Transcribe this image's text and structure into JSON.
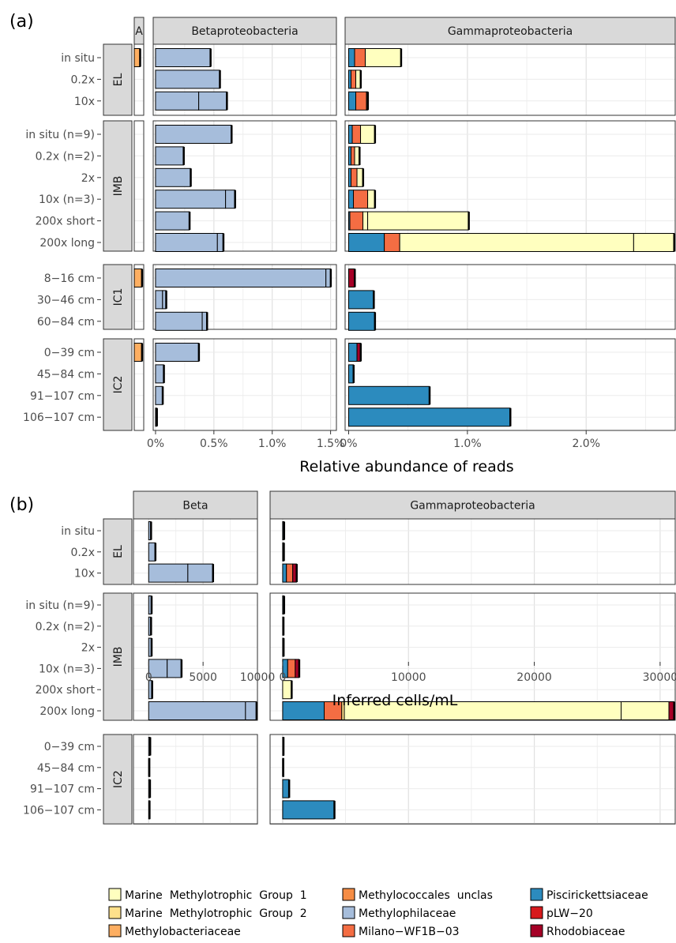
{
  "panels": [
    {
      "tag": "(a)",
      "xlabel": "Relative abundance of reads",
      "facets": [
        {
          "label": "A",
          "ticks": []
        },
        {
          "label": "Betaproteobacteria",
          "ticks": [
            "0%",
            "0.5%",
            "1.0%",
            "1.5%"
          ]
        },
        {
          "label": "Gammaproteobacteria",
          "ticks": [
            "0%",
            "1.0%",
            "2.0%"
          ]
        }
      ],
      "rowgroups": [
        {
          "label": "EL",
          "rows": [
            "in situ",
            "0.2x",
            "10x"
          ]
        },
        {
          "label": "IMB",
          "rows": [
            "in situ (n=9)",
            "0.2x (n=2)",
            "2x",
            "10x (n=3)",
            "200x short",
            "200x long"
          ]
        },
        {
          "label": "IC1",
          "rows": [
            "8−16 cm",
            "30−46 cm",
            "60−84 cm"
          ]
        },
        {
          "label": "IC2",
          "rows": [
            "0−39 cm",
            "45−84 cm",
            "91−107 cm",
            "106−107 cm"
          ]
        }
      ]
    },
    {
      "tag": "(b)",
      "xlabel": "Inferred cells/mL",
      "facets": [
        {
          "label": "Beta",
          "ticks": [
            "0",
            "5000",
            "10000"
          ]
        },
        {
          "label": "Gammaproteobacteria",
          "ticks": [
            "0",
            "10000",
            "20000",
            "30000"
          ]
        }
      ],
      "rowgroups": [
        {
          "label": "EL",
          "rows": [
            "in situ",
            "0.2x",
            "10x"
          ]
        },
        {
          "label": "IMB",
          "rows": [
            "in situ (n=9)",
            "0.2x (n=2)",
            "2x",
            "10x (n=3)",
            "200x short",
            "200x long"
          ]
        },
        {
          "label": "IC2",
          "rows": [
            "0−39 cm",
            "45−84 cm",
            "91−107 cm",
            "106−107 cm"
          ]
        }
      ]
    }
  ],
  "legend": [
    {
      "name": "Marine  Methylotrophic  Group  1",
      "color": "#ffffbf"
    },
    {
      "name": "Marine  Methylotrophic  Group  2",
      "color": "#fee08b"
    },
    {
      "name": "Methylobacteriaceae",
      "color": "#fdae61"
    },
    {
      "name": "Methylococcales  unclas",
      "color": "#f68d45"
    },
    {
      "name": "Methylophilaceae",
      "color": "#a6bddb"
    },
    {
      "name": "Milano−WF1B−03",
      "color": "#f46d43"
    },
    {
      "name": "Piscirickettsiaceae",
      "color": "#2c8bbe"
    },
    {
      "name": "pLW−20",
      "color": "#d7191c"
    },
    {
      "name": "Rhodobiaceae",
      "color": "#a50026"
    }
  ],
  "chart_data": [
    {
      "type": "bar",
      "orientation": "horizontal",
      "stacked": true,
      "title": "(a)",
      "xlabel": "Relative abundance of reads",
      "xlim_percent": {
        "A": [
          0,
          0.05
        ],
        "Betaproteobacteria": [
          0,
          1.55
        ],
        "Gammaproteobacteria": [
          0,
          2.75
        ]
      },
      "grid": true,
      "legend_position": "bottom",
      "rows": [
        {
          "group": "EL",
          "label": "in situ",
          "A": [
            {
              "taxon": "Methylobacteriaceae",
              "value": 0.03
            }
          ],
          "Betaproteobacteria": [
            {
              "taxon": "Methylophilaceae",
              "value": 0.47
            }
          ],
          "Gammaproteobacteria": [
            {
              "taxon": "Piscirickettsiaceae",
              "value": 0.05
            },
            {
              "taxon": "Milano−WF1B−03",
              "value": 0.09
            },
            {
              "taxon": "Marine Methylotrophic Group 1",
              "value": 0.3
            }
          ]
        },
        {
          "group": "EL",
          "label": "0.2x",
          "A": [],
          "Betaproteobacteria": [
            {
              "taxon": "Methylophilaceae",
              "value": 0.55
            }
          ],
          "Gammaproteobacteria": [
            {
              "taxon": "Piscirickettsiaceae",
              "value": 0.02
            },
            {
              "taxon": "Milano−WF1B−03",
              "value": 0.04
            },
            {
              "taxon": "Marine Methylotrophic Group 1",
              "value": 0.04
            }
          ]
        },
        {
          "group": "EL",
          "label": "10x",
          "A": [],
          "Betaproteobacteria": [
            {
              "taxon": "Methylophilaceae",
              "value": 0.37
            },
            {
              "taxon": "Methylophilaceae",
              "value": 0.24
            }
          ],
          "Gammaproteobacteria": [
            {
              "taxon": "Piscirickettsiaceae",
              "value": 0.06
            },
            {
              "taxon": "Milano−WF1B−03",
              "value": 0.09
            },
            {
              "taxon": "Marine Methylotrophic Group 1",
              "value": 0.01
            }
          ]
        },
        {
          "group": "IMB",
          "label": "in situ (n=9)",
          "A": [],
          "Betaproteobacteria": [
            {
              "taxon": "Methylophilaceae",
              "value": 0.65
            }
          ],
          "Gammaproteobacteria": [
            {
              "taxon": "Piscirickettsiaceae",
              "value": 0.03
            },
            {
              "taxon": "Milano−WF1B−03",
              "value": 0.07
            },
            {
              "taxon": "Marine Methylotrophic Group 1",
              "value": 0.12
            }
          ]
        },
        {
          "group": "IMB",
          "label": "0.2x (n=2)",
          "A": [],
          "Betaproteobacteria": [
            {
              "taxon": "Methylophilaceae",
              "value": 0.24
            }
          ],
          "Gammaproteobacteria": [
            {
              "taxon": "Piscirickettsiaceae",
              "value": 0.02
            },
            {
              "taxon": "Milano−WF1B−03",
              "value": 0.03
            },
            {
              "taxon": "Marine Methylotrophic Group 1",
              "value": 0.04
            }
          ]
        },
        {
          "group": "IMB",
          "label": "2x",
          "A": [],
          "Betaproteobacteria": [
            {
              "taxon": "Methylophilaceae",
              "value": 0.3
            }
          ],
          "Gammaproteobacteria": [
            {
              "taxon": "Piscirickettsiaceae",
              "value": 0.02
            },
            {
              "taxon": "Milano−WF1B−03",
              "value": 0.05
            },
            {
              "taxon": "Marine Methylotrophic Group 1",
              "value": 0.05
            }
          ]
        },
        {
          "group": "IMB",
          "label": "10x (n=3)",
          "A": [],
          "Betaproteobacteria": [
            {
              "taxon": "Methylophilaceae",
              "value": 0.6
            },
            {
              "taxon": "Methylophilaceae",
              "value": 0.08
            }
          ],
          "Gammaproteobacteria": [
            {
              "taxon": "Piscirickettsiaceae",
              "value": 0.04
            },
            {
              "taxon": "Milano−WF1B−03",
              "value": 0.12
            },
            {
              "taxon": "Marine Methylotrophic Group 1",
              "value": 0.06
            }
          ]
        },
        {
          "group": "IMB",
          "label": "200x short",
          "A": [],
          "Betaproteobacteria": [
            {
              "taxon": "Methylophilaceae",
              "value": 0.29
            }
          ],
          "Gammaproteobacteria": [
            {
              "taxon": "Piscirickettsiaceae",
              "value": 0.01
            },
            {
              "taxon": "Milano−WF1B−03",
              "value": 0.11
            },
            {
              "taxon": "Marine Methylotrophic Group 1",
              "value": 0.04
            },
            {
              "taxon": "Marine Methylotrophic Group 1",
              "value": 0.85
            }
          ]
        },
        {
          "group": "IMB",
          "label": "200x long",
          "A": [],
          "Betaproteobacteria": [
            {
              "taxon": "Methylophilaceae",
              "value": 0.53
            },
            {
              "taxon": "Methylophilaceae",
              "value": 0.05
            }
          ],
          "Gammaproteobacteria": [
            {
              "taxon": "Piscirickettsiaceae",
              "value": 0.3
            },
            {
              "taxon": "Milano−WF1B−03",
              "value": 0.13
            },
            {
              "taxon": "Marine Methylotrophic Group 1",
              "value": 1.97
            },
            {
              "taxon": "Marine Methylotrophic Group 1",
              "value": 0.34
            }
          ]
        },
        {
          "group": "IC1",
          "label": "8−16 cm",
          "A": [
            {
              "taxon": "Methylobacteriaceae",
              "value": 0.04
            }
          ],
          "Betaproteobacteria": [
            {
              "taxon": "Methylophilaceae",
              "value": 1.46
            },
            {
              "taxon": "Methylophilaceae",
              "value": 0.04
            }
          ],
          "Gammaproteobacteria": [
            {
              "taxon": "Rhodobiaceae",
              "value": 0.05
            }
          ]
        },
        {
          "group": "IC1",
          "label": "30−46 cm",
          "A": [],
          "Betaproteobacteria": [
            {
              "taxon": "Methylophilaceae",
              "value": 0.06
            },
            {
              "taxon": "Methylophilaceae",
              "value": 0.03
            }
          ],
          "Gammaproteobacteria": [
            {
              "taxon": "Piscirickettsiaceae",
              "value": 0.21
            }
          ]
        },
        {
          "group": "IC1",
          "label": "60−84 cm",
          "A": [],
          "Betaproteobacteria": [
            {
              "taxon": "Methylophilaceae",
              "value": 0.4
            },
            {
              "taxon": "Methylophilaceae",
              "value": 0.04
            }
          ],
          "Gammaproteobacteria": [
            {
              "taxon": "Piscirickettsiaceae",
              "value": 0.22
            }
          ]
        },
        {
          "group": "IC2",
          "label": "0−39 cm",
          "A": [
            {
              "taxon": "Methylobacteriaceae",
              "value": 0.04
            }
          ],
          "Betaproteobacteria": [
            {
              "taxon": "Methylophilaceae",
              "value": 0.37
            }
          ],
          "Gammaproteobacteria": [
            {
              "taxon": "Piscirickettsiaceae",
              "value": 0.07
            },
            {
              "taxon": "Rhodobiaceae",
              "value": 0.03
            }
          ]
        },
        {
          "group": "IC2",
          "label": "45−84 cm",
          "A": [],
          "Betaproteobacteria": [
            {
              "taxon": "Methylophilaceae",
              "value": 0.07
            }
          ],
          "Gammaproteobacteria": [
            {
              "taxon": "Piscirickettsiaceae",
              "value": 0.04
            }
          ]
        },
        {
          "group": "IC2",
          "label": "91−107 cm",
          "A": [],
          "Betaproteobacteria": [
            {
              "taxon": "Methylophilaceae",
              "value": 0.06
            }
          ],
          "Gammaproteobacteria": [
            {
              "taxon": "Piscirickettsiaceae",
              "value": 0.68
            }
          ]
        },
        {
          "group": "IC2",
          "label": "106−107 cm",
          "A": [],
          "Betaproteobacteria": [
            {
              "taxon": "Methylophilaceae",
              "value": 0.01
            }
          ],
          "Gammaproteobacteria": [
            {
              "taxon": "Piscirickettsiaceae",
              "value": 1.36
            }
          ]
        }
      ]
    },
    {
      "type": "bar",
      "orientation": "horizontal",
      "stacked": true,
      "title": "(b)",
      "xlabel": "Inferred cells/mL",
      "xlim": {
        "Beta": [
          -1400,
          10000
        ],
        "Gammaproteobacteria": [
          -1000,
          31200
        ]
      },
      "grid": true,
      "legend_position": "bottom",
      "rows": [
        {
          "group": "EL",
          "label": "in situ",
          "Beta": [
            {
              "taxon": "Methylophilaceae",
              "value": 200
            }
          ],
          "Gammaproteobacteria": [
            {
              "taxon": "Piscirickettsiaceae",
              "value": 100
            }
          ]
        },
        {
          "group": "EL",
          "label": "0.2x",
          "Beta": [
            {
              "taxon": "Methylophilaceae",
              "value": 600
            }
          ],
          "Gammaproteobacteria": [
            {
              "taxon": "Piscirickettsiaceae",
              "value": 80
            }
          ]
        },
        {
          "group": "EL",
          "label": "10x",
          "Beta": [
            {
              "taxon": "Methylophilaceae",
              "value": 3600
            },
            {
              "taxon": "Methylophilaceae",
              "value": 2300
            }
          ],
          "Gammaproteobacteria": [
            {
              "taxon": "Piscirickettsiaceae",
              "value": 300
            },
            {
              "taxon": "Milano−WF1B−03",
              "value": 500
            },
            {
              "taxon": "Rhodobiaceae",
              "value": 300
            }
          ]
        },
        {
          "group": "IMB",
          "label": "in situ (n=9)",
          "Beta": [
            {
              "taxon": "Methylophilaceae",
              "value": 250
            }
          ],
          "Gammaproteobacteria": [
            {
              "taxon": "Piscirickettsiaceae",
              "value": 100
            }
          ]
        },
        {
          "group": "IMB",
          "label": "0.2x (n=2)",
          "Beta": [
            {
              "taxon": "Methylophilaceae",
              "value": 200
            }
          ],
          "Gammaproteobacteria": [
            {
              "taxon": "Piscirickettsiaceae",
              "value": 50
            }
          ]
        },
        {
          "group": "IMB",
          "label": "2x",
          "Beta": [
            {
              "taxon": "Methylophilaceae",
              "value": 250
            }
          ],
          "Gammaproteobacteria": [
            {
              "taxon": "Piscirickettsiaceae",
              "value": 60
            }
          ]
        },
        {
          "group": "IMB",
          "label": "10x (n=3)",
          "Beta": [
            {
              "taxon": "Methylophilaceae",
              "value": 1700
            },
            {
              "taxon": "Methylophilaceae",
              "value": 1300
            }
          ],
          "Gammaproteobacteria": [
            {
              "taxon": "Piscirickettsiaceae",
              "value": 400
            },
            {
              "taxon": "Milano−WF1B−03",
              "value": 600
            },
            {
              "taxon": "Rhodobiaceae",
              "value": 300
            }
          ]
        },
        {
          "group": "IMB",
          "label": "200x short",
          "Beta": [
            {
              "taxon": "Methylophilaceae",
              "value": 300
            }
          ],
          "Gammaproteobacteria": [
            {
              "taxon": "Marine Methylotrophic Group 1",
              "value": 700
            }
          ]
        },
        {
          "group": "IMB",
          "label": "200x long",
          "Beta": [
            {
              "taxon": "Methylophilaceae",
              "value": 8900
            },
            {
              "taxon": "Methylophilaceae",
              "value": 1000
            }
          ],
          "Gammaproteobacteria": [
            {
              "taxon": "Piscirickettsiaceae",
              "value": 3300
            },
            {
              "taxon": "Milano−WF1B−03",
              "value": 1400
            },
            {
              "taxon": "Marine Methylotrophic Group 2",
              "value": 200
            },
            {
              "taxon": "Marine Methylotrophic Group 1",
              "value": 22000
            },
            {
              "taxon": "Marine Methylotrophic Group 1",
              "value": 3800
            },
            {
              "taxon": "Rhodobiaceae",
              "value": 400
            }
          ]
        },
        {
          "group": "IC2",
          "label": "0−39 cm",
          "Beta": [
            {
              "taxon": "Methylophilaceae",
              "value": 120
            }
          ],
          "Gammaproteobacteria": [
            {
              "taxon": "Piscirickettsiaceae",
              "value": 50
            }
          ]
        },
        {
          "group": "IC2",
          "label": "45−84 cm",
          "Beta": [
            {
              "taxon": "Methylophilaceae",
              "value": 30
            }
          ],
          "Gammaproteobacteria": [
            {
              "taxon": "Piscirickettsiaceae",
              "value": 20
            }
          ]
        },
        {
          "group": "IC2",
          "label": "91−107 cm",
          "Beta": [
            {
              "taxon": "Methylophilaceae",
              "value": 100
            }
          ],
          "Gammaproteobacteria": [
            {
              "taxon": "Piscirickettsiaceae",
              "value": 500
            }
          ]
        },
        {
          "group": "IC2",
          "label": "106−107 cm",
          "Beta": [
            {
              "taxon": "Methylophilaceae",
              "value": 60
            }
          ],
          "Gammaproteobacteria": [
            {
              "taxon": "Piscirickettsiaceae",
              "value": 4100
            }
          ]
        }
      ]
    }
  ]
}
